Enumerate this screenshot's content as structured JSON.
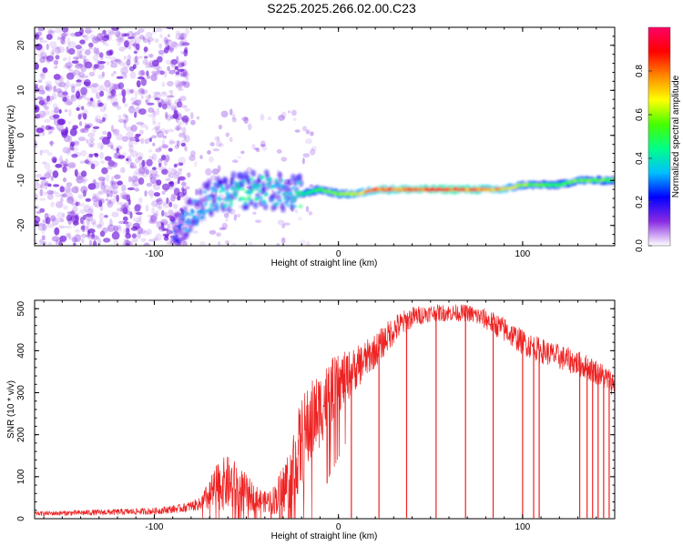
{
  "figure_title": "S225.2025.266.02.00.C23",
  "colors": {
    "snr_line": "#ee2222",
    "spectro_hue_low": "#8a2be2",
    "axis": "#000000"
  },
  "chart_data": [
    {
      "type": "heatmap",
      "name": "spectrogram",
      "xlabel": "Height of straight line (km)",
      "ylabel": "Frequency (Hz)",
      "xlim": [
        -165,
        150
      ],
      "ylim": [
        -24.5,
        24
      ],
      "xticks": [
        -100,
        0,
        100
      ],
      "yticks": [
        20,
        10,
        0,
        -10,
        -20
      ],
      "colorbar": {
        "label": "Normalized spectral amplitude",
        "range": [
          0,
          1
        ],
        "ticks": [
          0.0,
          0.2,
          0.4,
          0.6,
          0.8
        ],
        "colormap": [
          "#ffffff",
          "#8a2be2",
          "#0000ff",
          "#00bfff",
          "#00ff88",
          "#44ff00",
          "#ffff00",
          "#ff8800",
          "#ff0000",
          "#ff0066"
        ]
      },
      "noise_region_x": [
        -165,
        -82
      ],
      "ridge": {
        "x": [
          -90,
          -80,
          -70,
          -60,
          -50,
          -40,
          -30,
          -20,
          -10,
          0,
          10,
          20,
          40,
          60,
          75,
          80,
          90,
          100,
          110,
          120,
          130,
          150
        ],
        "freq": [
          -22,
          -18,
          -14,
          -13,
          -12,
          -12,
          -13,
          -13,
          -12,
          -13,
          -13,
          -12,
          -12,
          -12,
          -12,
          -12,
          -12,
          -11,
          -11,
          -11,
          -10,
          -10
        ],
        "amp": [
          0.25,
          0.35,
          0.35,
          0.4,
          0.45,
          0.4,
          0.35,
          0.45,
          0.55,
          0.6,
          0.7,
          0.8,
          0.85,
          0.9,
          0.85,
          0.8,
          0.75,
          0.6,
          0.55,
          0.5,
          0.6,
          0.55
        ]
      }
    },
    {
      "type": "line",
      "name": "snr",
      "xlabel": "Height of straight line (km)",
      "ylabel": "SNR (10 * v/v)",
      "xlim": [
        -165,
        150
      ],
      "ylim": [
        0,
        520
      ],
      "xticks": [
        -100,
        0,
        100
      ],
      "yticks": [
        0,
        100,
        200,
        300,
        400,
        500
      ],
      "envelope": {
        "x": [
          -165,
          -130,
          -100,
          -85,
          -75,
          -70,
          -65,
          -60,
          -55,
          -50,
          -45,
          -40,
          -35,
          -30,
          -25,
          -20,
          -15,
          -10,
          -5,
          0,
          10,
          20,
          30,
          40,
          50,
          60,
          70,
          80,
          90,
          100,
          110,
          120,
          130,
          140,
          150
        ],
        "base": [
          12,
          15,
          18,
          25,
          35,
          55,
          80,
          85,
          75,
          60,
          50,
          40,
          45,
          70,
          120,
          180,
          230,
          260,
          300,
          320,
          360,
          400,
          450,
          480,
          490,
          490,
          490,
          475,
          450,
          420,
          400,
          385,
          370,
          350,
          320
        ],
        "spread": [
          5,
          7,
          8,
          10,
          15,
          40,
          60,
          65,
          60,
          45,
          30,
          25,
          35,
          60,
          90,
          110,
          100,
          90,
          80,
          70,
          50,
          40,
          35,
          25,
          20,
          20,
          20,
          25,
          30,
          30,
          30,
          30,
          30,
          30,
          30
        ]
      },
      "dropouts_x": [
        7,
        22,
        37,
        53,
        69,
        84,
        100,
        106,
        109,
        131,
        135,
        138,
        141,
        144,
        147
      ]
    }
  ]
}
